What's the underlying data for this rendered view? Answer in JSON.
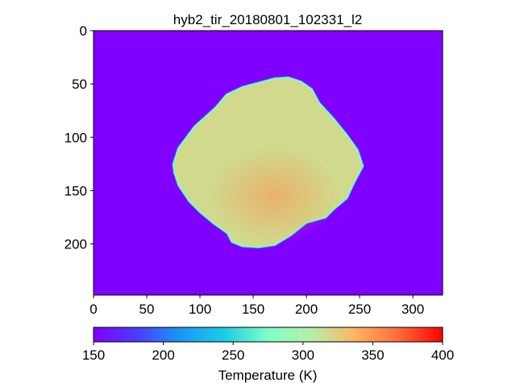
{
  "chart_data": {
    "type": "heatmap",
    "title": "hyb2_tir_20180801_102331_l2",
    "xlabel": "",
    "ylabel": "",
    "xlim": [
      0,
      328
    ],
    "ylim": [
      248,
      0
    ],
    "x_ticks": [
      "0",
      "50",
      "100",
      "150",
      "200",
      "250",
      "300"
    ],
    "y_ticks": [
      "0",
      "50",
      "100",
      "150",
      "200"
    ],
    "colormap": "rainbow",
    "colorbar": {
      "label": "Temperature (K)",
      "vmin": 150,
      "vmax": 400,
      "ticks": [
        "150",
        "200",
        "250",
        "300",
        "350",
        "400"
      ],
      "orientation": "horizontal",
      "placement": "bottom"
    },
    "background_value": 150,
    "object": {
      "description_value_range": [
        260,
        340
      ],
      "outline": [
        [
          75,
          125
        ],
        [
          80,
          110
        ],
        [
          95,
          90
        ],
        [
          115,
          72
        ],
        [
          125,
          60
        ],
        [
          140,
          53
        ],
        [
          155,
          49
        ],
        [
          170,
          45
        ],
        [
          183,
          44
        ],
        [
          195,
          48
        ],
        [
          205,
          55
        ],
        [
          212,
          68
        ],
        [
          225,
          82
        ],
        [
          238,
          98
        ],
        [
          248,
          112
        ],
        [
          253,
          127
        ],
        [
          245,
          142
        ],
        [
          238,
          157
        ],
        [
          225,
          168
        ],
        [
          218,
          175
        ],
        [
          200,
          180
        ],
        [
          185,
          192
        ],
        [
          170,
          201
        ],
        [
          155,
          203
        ],
        [
          140,
          202
        ],
        [
          130,
          198
        ],
        [
          126,
          190
        ],
        [
          112,
          180
        ],
        [
          100,
          170
        ],
        [
          90,
          160
        ],
        [
          80,
          145
        ],
        [
          76,
          133
        ]
      ],
      "edge_value": 245,
      "interior_value": 318,
      "warm_region_value": 340,
      "warm_region_center": [
        170,
        155
      ]
    }
  },
  "colors": {
    "background": "#ffffff",
    "axis": "#000000"
  }
}
